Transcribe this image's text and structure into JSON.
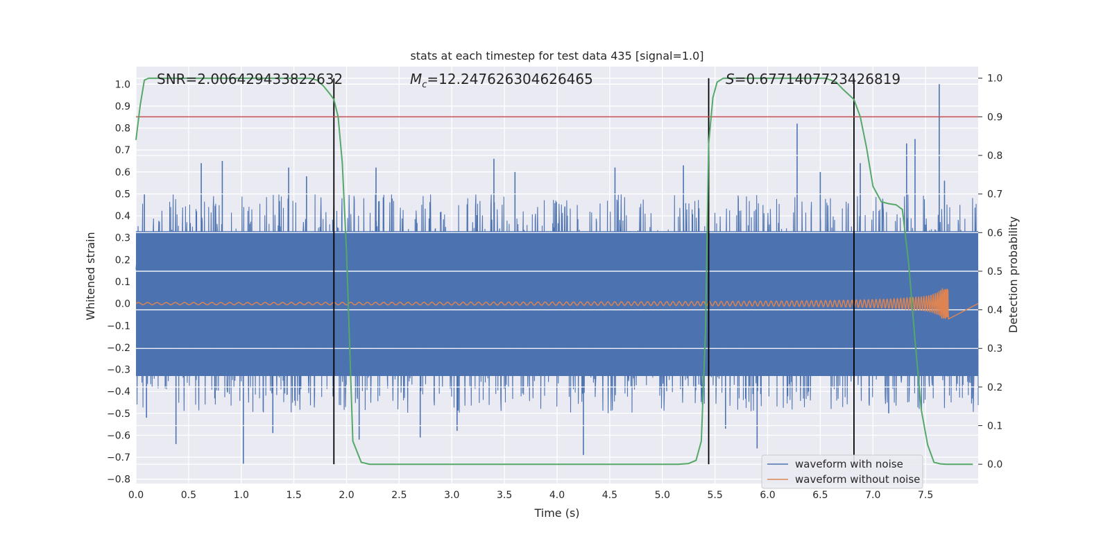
{
  "chart_data": {
    "type": "line",
    "title": "stats at each timestep for test data 435 [signal=1.0]",
    "xlabel": "Time (s)",
    "ylabel_left": "Whitened strain",
    "ylabel_right": "Detection probability",
    "xlim": [
      0.0,
      8.0
    ],
    "ylim_left": [
      -0.82,
      1.08
    ],
    "ylim_right": [
      -0.05,
      1.03
    ],
    "x_ticks": [
      "0.0",
      "0.5",
      "1.0",
      "1.5",
      "2.0",
      "2.5",
      "3.0",
      "3.5",
      "4.0",
      "4.5",
      "5.0",
      "5.5",
      "6.0",
      "6.5",
      "7.0",
      "7.5"
    ],
    "y_ticks_left": [
      "1.0",
      "0.9",
      "0.8",
      "0.7",
      "0.6",
      "0.5",
      "0.4",
      "0.3",
      "0.2",
      "0.1",
      "0.0",
      "−0.1",
      "−0.2",
      "−0.3",
      "−0.4",
      "−0.5",
      "−0.6",
      "−0.7",
      "−0.8"
    ],
    "y_ticks_right": [
      "1.0",
      "0.9",
      "0.8",
      "0.7",
      "0.6",
      "0.5",
      "0.4",
      "0.3",
      "0.2",
      "0.1",
      "0.0"
    ],
    "grid": true,
    "legend_position": "lower-right",
    "annotations": {
      "snr": "SNR=2.006429433822632",
      "mc_symbol": "M",
      "mc_sub": "c",
      "mc_value": "=12.247626304626465",
      "s_symbol": "S",
      "s_value": "=0.6771407723426819"
    },
    "threshold_right": 0.9,
    "vertical_lines_x": [
      1.88,
      5.44,
      6.82
    ],
    "series": [
      {
        "name": "waveform with noise",
        "color": "#4c72b0",
        "duration": 8.0,
        "core_amplitude": 0.33,
        "typical_peak": 0.5,
        "spikes": [
          {
            "t": 0.08,
            "v": 0.5
          },
          {
            "t": 0.1,
            "v": -0.52
          },
          {
            "t": 0.38,
            "v": -0.64
          },
          {
            "t": 0.62,
            "v": 0.64
          },
          {
            "t": 0.82,
            "v": 0.65
          },
          {
            "t": 1.02,
            "v": -0.73
          },
          {
            "t": 1.45,
            "v": 0.62
          },
          {
            "t": 1.62,
            "v": 0.58
          },
          {
            "t": 2.12,
            "v": -0.62
          },
          {
            "t": 2.28,
            "v": 0.62
          },
          {
            "t": 2.7,
            "v": -0.61
          },
          {
            "t": 3.4,
            "v": 0.66
          },
          {
            "t": 3.6,
            "v": 0.6
          },
          {
            "t": 4.25,
            "v": -0.69
          },
          {
            "t": 4.55,
            "v": 0.62
          },
          {
            "t": 5.2,
            "v": 0.63
          },
          {
            "t": 5.9,
            "v": -0.66
          },
          {
            "t": 6.28,
            "v": 0.82
          },
          {
            "t": 6.5,
            "v": 0.6
          },
          {
            "t": 6.88,
            "v": 0.64
          },
          {
            "t": 7.32,
            "v": 0.73
          },
          {
            "t": 7.4,
            "v": 0.75
          },
          {
            "t": 7.63,
            "v": 1.0
          },
          {
            "t": 7.68,
            "v": 0.56
          },
          {
            "t": 7.15,
            "v": -0.5
          },
          {
            "t": 5.6,
            "v": -0.57
          },
          {
            "t": 3.05,
            "v": -0.58
          },
          {
            "t": 1.3,
            "v": -0.59
          }
        ]
      },
      {
        "name": "waveform without noise",
        "color": "#dd8452",
        "chirp_start_amplitude": 0.005,
        "chirp_end_amplitude": 0.07,
        "merger_time": 7.72
      },
      {
        "name": "detection probability",
        "color": "#55a868",
        "axis": "right",
        "x": [
          0.0,
          0.04,
          0.08,
          0.12,
          1.65,
          1.72,
          1.78,
          1.84,
          1.88,
          1.92,
          1.96,
          2.0,
          2.06,
          2.14,
          2.22,
          5.15,
          5.25,
          5.32,
          5.37,
          5.41,
          5.44,
          5.48,
          5.52,
          5.58,
          5.64,
          6.55,
          6.65,
          6.72,
          6.78,
          6.82,
          6.88,
          6.94,
          7.0,
          7.08,
          7.15,
          7.22,
          7.28,
          7.34,
          7.4,
          7.46,
          7.52,
          7.58,
          7.64,
          7.7,
          7.8,
          7.95
        ],
        "values": [
          0.84,
          0.93,
          0.995,
          1.0,
          1.0,
          0.995,
          0.98,
          0.96,
          0.945,
          0.9,
          0.78,
          0.55,
          0.06,
          0.005,
          0.0,
          0.0,
          0.002,
          0.01,
          0.06,
          0.35,
          0.83,
          0.95,
          0.99,
          1.0,
          1.0,
          1.0,
          0.99,
          0.97,
          0.955,
          0.945,
          0.9,
          0.82,
          0.72,
          0.68,
          0.675,
          0.672,
          0.66,
          0.52,
          0.32,
          0.14,
          0.05,
          0.005,
          0.001,
          0.0,
          0.0,
          0.0
        ]
      }
    ]
  }
}
